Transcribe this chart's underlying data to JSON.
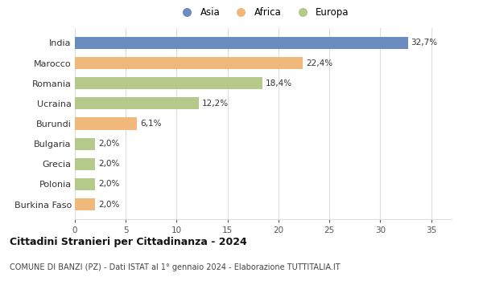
{
  "categories": [
    "India",
    "Marocco",
    "Romania",
    "Ucraina",
    "Burundi",
    "Bulgaria",
    "Grecia",
    "Polonia",
    "Burkina Faso"
  ],
  "values": [
    32.7,
    22.4,
    18.4,
    12.2,
    6.1,
    2.0,
    2.0,
    2.0,
    2.0
  ],
  "colors": [
    "#6b8cbf",
    "#f0b87a",
    "#b5c98a",
    "#b5c98a",
    "#f0b87a",
    "#b5c98a",
    "#b5c98a",
    "#b5c98a",
    "#f0b87a"
  ],
  "labels": [
    "32,7%",
    "22,4%",
    "18,4%",
    "12,2%",
    "6,1%",
    "2,0%",
    "2,0%",
    "2,0%",
    "2,0%"
  ],
  "legend": [
    {
      "label": "Asia",
      "color": "#6b8cbf"
    },
    {
      "label": "Africa",
      "color": "#f0b87a"
    },
    {
      "label": "Europa",
      "color": "#b5c98a"
    }
  ],
  "xlim": [
    0,
    37
  ],
  "xticks": [
    0,
    5,
    10,
    15,
    20,
    25,
    30,
    35
  ],
  "title": "Cittadini Stranieri per Cittadinanza - 2024",
  "subtitle": "COMUNE DI BANZI (PZ) - Dati ISTAT al 1° gennaio 2024 - Elaborazione TUTTITALIA.IT",
  "background_color": "#ffffff",
  "grid_color": "#dddddd"
}
